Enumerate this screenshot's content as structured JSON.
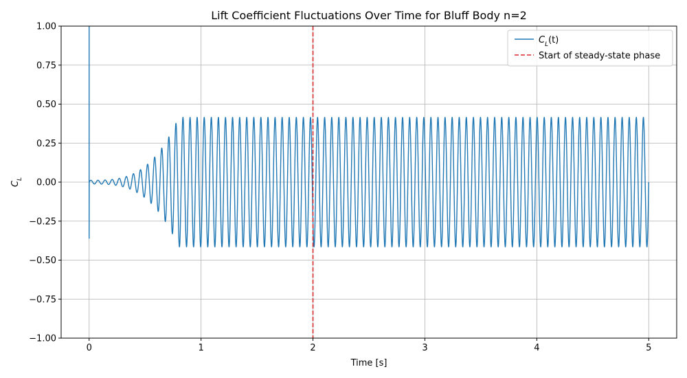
{
  "chart_data": {
    "type": "line",
    "title": "Lift Coefficient Fluctuations Over Time for Bluff Body n=2",
    "xlabel": "Time [s]",
    "ylabel": "C_L",
    "xlim": [
      -0.25,
      5.25
    ],
    "ylim": [
      -1.0,
      1.0
    ],
    "xticks": [
      0,
      1,
      2,
      3,
      4,
      5
    ],
    "xtick_labels": [
      "0",
      "1",
      "2",
      "3",
      "4",
      "5"
    ],
    "yticks": [
      -1.0,
      -0.75,
      -0.5,
      -0.25,
      0.0,
      0.25,
      0.5,
      0.75,
      1.0
    ],
    "ytick_labels": [
      "−1.00",
      "−0.75",
      "−0.50",
      "−0.25",
      "0.00",
      "0.25",
      "0.50",
      "0.75",
      "1.00"
    ],
    "grid": true,
    "legend_position": "top-right",
    "series": [
      {
        "name": "C_L(t)",
        "legend_label": "(t)",
        "color": "#1f77b4",
        "style": "solid",
        "x_range": [
          0,
          5
        ],
        "initial_spike": {
          "t": 0.0,
          "max": 1.0,
          "min": -0.36
        },
        "oscillation": {
          "steady_amplitude": 0.415,
          "frequency_hz": 15.8,
          "transient_until": 0.8
        }
      }
    ],
    "vlines": [
      {
        "x": 2.0,
        "color": "#d62728",
        "style": "dashed",
        "label": "Start of steady-state phase"
      }
    ]
  }
}
